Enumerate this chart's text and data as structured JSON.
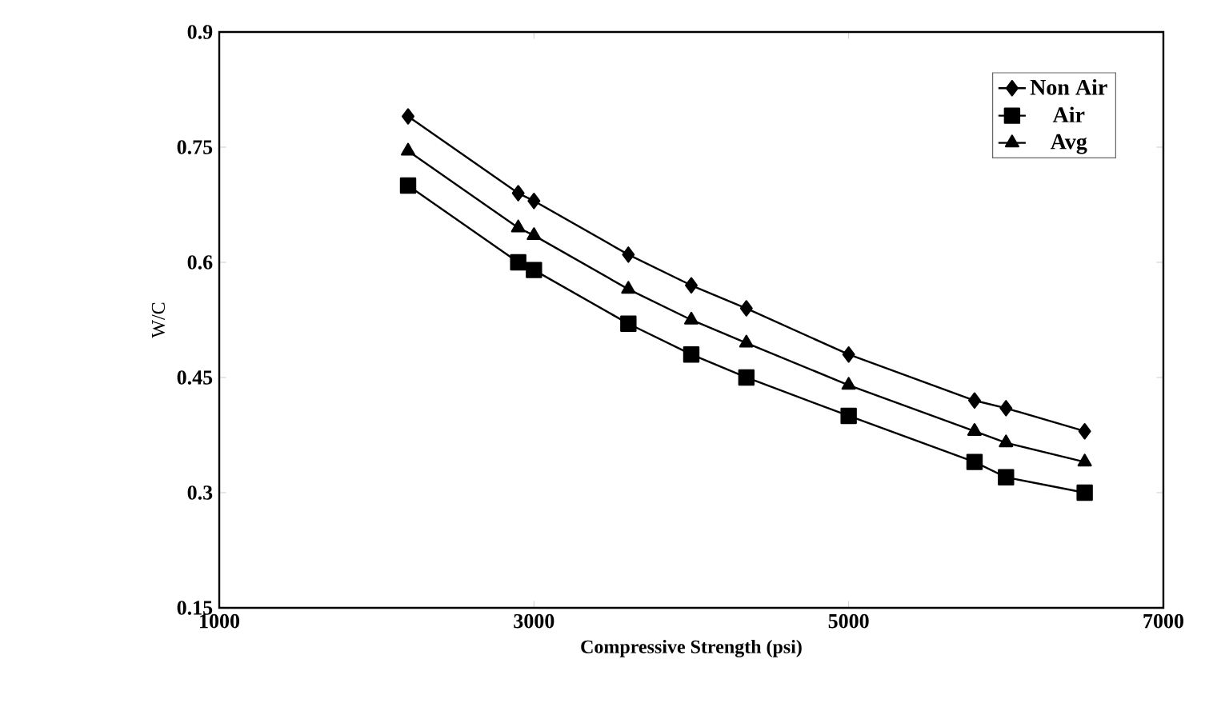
{
  "chart_data": {
    "type": "line",
    "xlabel": "Compressive Strength (psi)",
    "ylabel": "W/C",
    "x": [
      2200,
      2900,
      3000,
      3600,
      4000,
      4350,
      5000,
      5800,
      6000,
      6500
    ],
    "series": [
      {
        "name": "Non Air",
        "color": "#000000",
        "marker": "diamond",
        "values": [
          0.79,
          0.69,
          0.68,
          0.61,
          0.57,
          0.54,
          0.48,
          0.42,
          0.41,
          0.38
        ]
      },
      {
        "name": "Air",
        "color": "#000000",
        "marker": "square",
        "values": [
          0.7,
          0.6,
          0.59,
          0.52,
          0.48,
          0.45,
          0.4,
          0.34,
          0.32,
          0.3
        ]
      },
      {
        "name": "Avg",
        "color": "#000000",
        "marker": "triangle",
        "values": [
          0.745,
          0.645,
          0.635,
          0.565,
          0.525,
          0.495,
          0.44,
          0.38,
          0.365,
          0.34
        ]
      }
    ],
    "xlim": [
      1000,
      7000
    ],
    "xticks": [
      1000,
      3000,
      5000,
      7000
    ],
    "ylim": [
      0.15,
      0.9
    ],
    "yticks": [
      0.15,
      0.3,
      0.45,
      0.6,
      0.75,
      0.9
    ],
    "legend": "top right",
    "grid": false,
    "line_style": "solid"
  }
}
